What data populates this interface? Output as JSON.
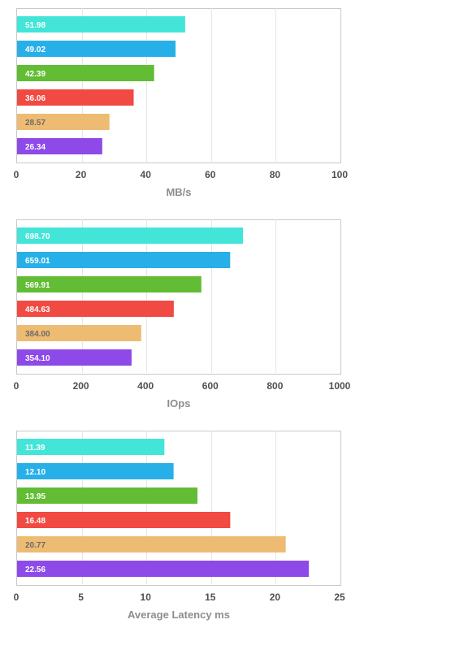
{
  "colors": {
    "frame": "#c9c9c9",
    "grid": "#e6e6e6",
    "tick": "#4f4f4f",
    "axis_title": "#8d8d8d",
    "label_on_dark": "#ffffff",
    "label_on_light": "#6b6b6b"
  },
  "chart_data": [
    {
      "type": "bar",
      "orientation": "horizontal",
      "title": "",
      "xlabel": "MB/s",
      "ylabel": "",
      "xlim": [
        0,
        100
      ],
      "xticks": [
        "0",
        "20",
        "40",
        "60",
        "80",
        "100"
      ],
      "grid": "vertical",
      "legend": "none",
      "series": [
        {
          "values": [
            51.98,
            49.02,
            42.39,
            36.06,
            28.57,
            26.34
          ],
          "labels": [
            "51.98",
            "49.02",
            "42.39",
            "36.06",
            "28.57",
            "26.34"
          ],
          "colors": [
            "#42e5d8",
            "#27b0e8",
            "#62bd35",
            "#f04a43",
            "#eebb72",
            "#8d4ae8"
          ]
        }
      ]
    },
    {
      "type": "bar",
      "orientation": "horizontal",
      "title": "",
      "xlabel": "IOps",
      "ylabel": "",
      "xlim": [
        0,
        1000
      ],
      "xticks": [
        "0",
        "200",
        "400",
        "600",
        "800",
        "1000"
      ],
      "grid": "vertical",
      "legend": "none",
      "series": [
        {
          "values": [
            698.7,
            659.01,
            569.91,
            484.63,
            384.0,
            354.1
          ],
          "labels": [
            "698.70",
            "659.01",
            "569.91",
            "484.63",
            "384.00",
            "354.10"
          ],
          "colors": [
            "#42e5d8",
            "#27b0e8",
            "#62bd35",
            "#f04a43",
            "#eebb72",
            "#8d4ae8"
          ]
        }
      ]
    },
    {
      "type": "bar",
      "orientation": "horizontal",
      "title": "",
      "xlabel": "Average Latency ms",
      "ylabel": "",
      "xlim": [
        0,
        25
      ],
      "xticks": [
        "0",
        "5",
        "10",
        "15",
        "20",
        "25"
      ],
      "grid": "vertical",
      "legend": "none",
      "series": [
        {
          "values": [
            11.39,
            12.1,
            13.95,
            16.48,
            20.77,
            22.56
          ],
          "labels": [
            "11.39",
            "12.10",
            "13.95",
            "16.48",
            "20.77",
            "22.56"
          ],
          "colors": [
            "#42e5d8",
            "#27b0e8",
            "#62bd35",
            "#f04a43",
            "#eebb72",
            "#8d4ae8"
          ]
        }
      ]
    }
  ]
}
